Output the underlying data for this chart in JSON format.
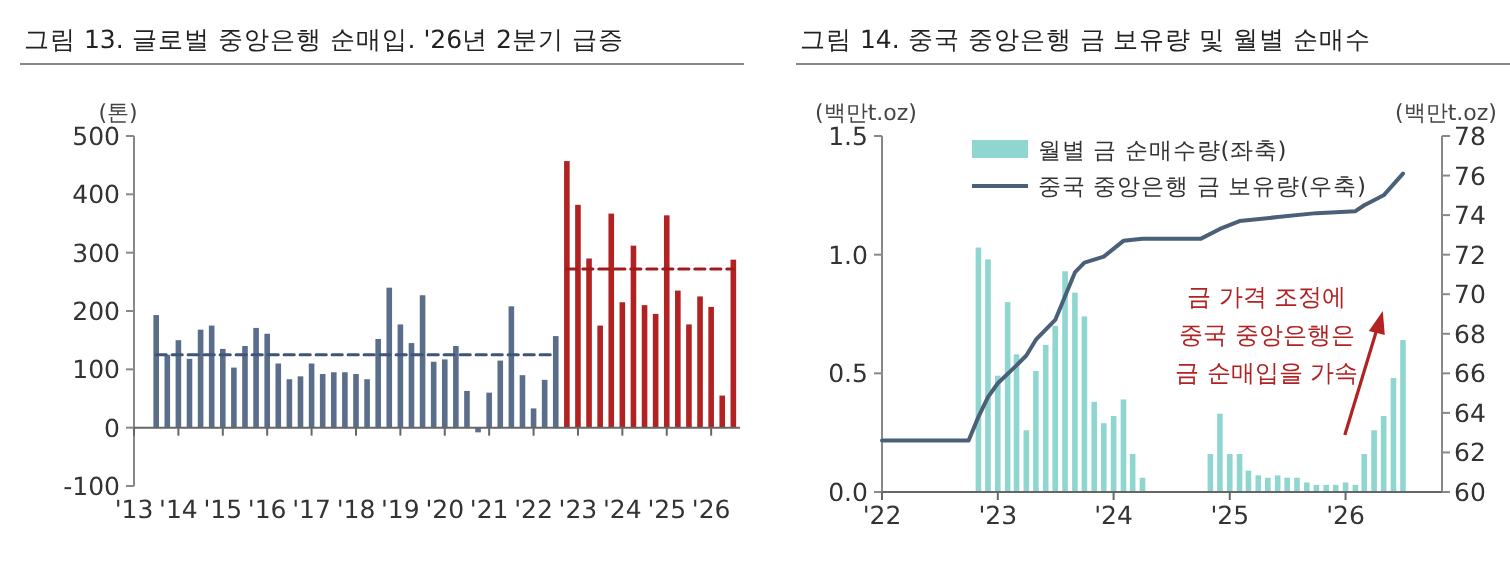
{
  "chart_data": [
    {
      "type": "bar",
      "title": "그림 13. 글로벌 중앙은행 순매입. '26년 2분기 급증",
      "ylabel": "(톤)",
      "xlim": [
        2013,
        2026.65
      ],
      "xticks": [
        {
          "value": 2013,
          "label": "'13"
        },
        {
          "value": 2014,
          "label": "'14"
        },
        {
          "value": 2015,
          "label": "'15"
        },
        {
          "value": 2016,
          "label": "'16"
        },
        {
          "value": 2017,
          "label": "'17"
        },
        {
          "value": 2018,
          "label": "'18"
        },
        {
          "value": 2019,
          "label": "'19"
        },
        {
          "value": 2020,
          "label": "'20"
        },
        {
          "value": 2021,
          "label": "'21"
        },
        {
          "value": 2022,
          "label": "'22"
        },
        {
          "value": 2023,
          "label": "'23"
        },
        {
          "value": 2024,
          "label": "'24"
        },
        {
          "value": 2025,
          "label": "'25"
        },
        {
          "value": 2026,
          "label": "'26"
        }
      ],
      "ylim": [
        -100,
        500
      ],
      "yticks": [
        -100,
        0,
        100,
        200,
        300,
        400,
        500
      ],
      "series": [
        {
          "color": "#5a6e8c",
          "x": [
            2013.5,
            2013.75,
            2014,
            2014.25,
            2014.5,
            2014.75,
            2015,
            2015.25,
            2015.5,
            2015.75,
            2016,
            2016.25,
            2016.5,
            2016.75,
            2017,
            2017.25,
            2017.5,
            2017.75,
            2018,
            2018.25,
            2018.5,
            2018.75,
            2019,
            2019.25,
            2019.5,
            2019.75,
            2020,
            2020.25,
            2020.5,
            2020.75,
            2021,
            2021.25,
            2021.5,
            2021.75,
            2022,
            2022.25,
            2022.5
          ],
          "values": [
            193,
            125,
            150,
            118,
            168,
            175,
            135,
            103,
            140,
            171,
            161,
            110,
            83,
            88,
            110,
            92,
            95,
            95,
            92,
            83,
            152,
            240,
            177,
            145,
            227,
            113,
            117,
            140,
            63,
            -8,
            60,
            115,
            208,
            90,
            33,
            82,
            157
          ]
        },
        {
          "color": "#b22222",
          "x": [
            2022.75,
            2023,
            2023.25,
            2023.5,
            2023.75,
            2024,
            2024.25,
            2024.5,
            2024.75,
            2025,
            2025.25,
            2025.5,
            2025.75,
            2026,
            2026.25,
            2026.5
          ],
          "values": [
            457,
            382,
            290,
            175,
            367,
            215,
            312,
            210,
            195,
            364,
            235,
            177,
            225,
            207,
            55,
            288
          ]
        },
        {
          "type": "line",
          "line_style": "dashed",
          "color": "#3e5578",
          "x": [
            2013.5,
            2022.4
          ],
          "values": [
            125,
            125
          ]
        },
        {
          "type": "line",
          "line_style": "dashed",
          "color": "#a01c1c",
          "x": [
            2022.75,
            2026.5
          ],
          "values": [
            272,
            272
          ]
        }
      ]
    },
    {
      "type": "bar",
      "title": "그림 14. 중국 중앙은행 금 보유량 및 월별 순매수",
      "ylabel": "(백만t.oz)",
      "y2label": "(백만t.oz)",
      "legend": "top",
      "xlim": [
        "2022-01",
        "2026-11"
      ],
      "xticks": [
        {
          "value": "2022-01",
          "label": "'22"
        },
        {
          "value": "2023-01",
          "label": "'23"
        },
        {
          "value": "2024-01",
          "label": "'24"
        },
        {
          "value": "2025-01",
          "label": "'25"
        },
        {
          "value": "2026-01",
          "label": "'26"
        }
      ],
      "ylim": [
        0,
        1.5
      ],
      "yticks": [
        {
          "value": 0,
          "label": "0.0"
        },
        {
          "value": 0.5,
          "label": "0.5"
        },
        {
          "value": 1,
          "label": "1.0"
        },
        {
          "value": 1.5,
          "label": "1.5"
        }
      ],
      "y2lim": [
        60,
        78
      ],
      "y2ticks": [
        60,
        62,
        64,
        66,
        68,
        70,
        72,
        74,
        76,
        78
      ],
      "series": [
        {
          "name": "월별 금 순매수량(좌축)",
          "color": "#8fd6d0",
          "x": [
            "2022-11",
            "2022-12",
            "2023-01",
            "2023-02",
            "2023-03",
            "2023-04",
            "2023-05",
            "2023-06",
            "2023-07",
            "2023-08",
            "2023-09",
            "2023-10",
            "2023-11",
            "2023-12",
            "2024-01",
            "2024-02",
            "2024-03",
            "2024-04",
            "2024-11",
            "2024-12",
            "2025-01",
            "2025-02",
            "2025-03",
            "2025-04",
            "2025-05",
            "2025-06",
            "2025-07",
            "2025-08",
            "2025-09",
            "2025-10",
            "2025-11",
            "2025-12",
            "2026-01",
            "2026-02",
            "2026-03",
            "2026-04",
            "2026-05",
            "2026-06",
            "2026-07"
          ],
          "values": [
            1.03,
            0.98,
            0.49,
            0.8,
            0.58,
            0.26,
            0.51,
            0.62,
            0.7,
            0.93,
            0.84,
            0.74,
            0.38,
            0.29,
            0.32,
            0.39,
            0.16,
            0.06,
            0.16,
            0.33,
            0.16,
            0.16,
            0.09,
            0.07,
            0.06,
            0.07,
            0.06,
            0.06,
            0.04,
            0.03,
            0.03,
            0.03,
            0.04,
            0.03,
            0.16,
            0.26,
            0.32,
            0.48,
            0.64
          ]
        },
        {
          "name": "중국 중앙은행 금 보유량(우축)",
          "type": "line",
          "axis": "y2",
          "color": "#4a6078",
          "x": [
            "2022-01",
            "2022-10",
            "2022-11",
            "2022-12",
            "2023-01",
            "2023-03",
            "2023-04",
            "2023-05",
            "2023-07",
            "2023-08",
            "2023-09",
            "2023-10",
            "2023-12",
            "2024-02",
            "2024-04",
            "2024-10",
            "2024-12",
            "2025-02",
            "2025-06",
            "2025-10",
            "2026-02",
            "2026-03",
            "2026-05",
            "2026-07"
          ],
          "values": [
            62.6,
            62.6,
            63.8,
            64.8,
            65.5,
            66.4,
            66.9,
            67.7,
            68.7,
            69.9,
            71.1,
            71.6,
            71.9,
            72.7,
            72.8,
            72.8,
            73.3,
            73.7,
            73.9,
            74.1,
            74.2,
            74.5,
            75.0,
            76.1
          ]
        }
      ],
      "annotations": [
        "금 가격 조정에\n중국 중앙은행은\n금 순매입을 가속"
      ]
    }
  ]
}
